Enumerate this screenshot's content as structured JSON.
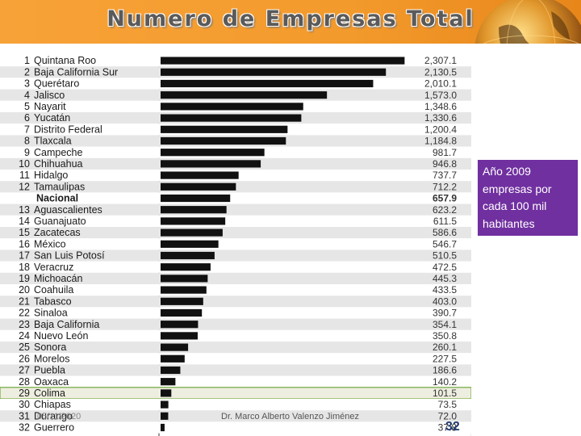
{
  "slide": {
    "title": "Numero de Empresas Total",
    "callout": "Año 2009 empresas por cada  100 mil habitantes",
    "footer_date": "05/11/2020",
    "footer_author": "Dr. Marco Alberto Valenzo Jiménez",
    "page_number": "32"
  },
  "colors": {
    "bar": "#111111",
    "highlight_bg": "#eeeee0",
    "highlight_border": "#6fa83a",
    "callout_bg": "#7030a0",
    "header_bg": "#f39a2c"
  },
  "chart_data": {
    "type": "bar",
    "orientation": "horizontal",
    "title": "",
    "xlim": [
      0,
      2350
    ],
    "highlight": "Colima",
    "rows": [
      {
        "rank": "1",
        "state": "Quintana Roo",
        "value": 2307.1,
        "label": "2,307.1"
      },
      {
        "rank": "2",
        "state": "Baja California Sur",
        "value": 2130.5,
        "label": "2,130.5"
      },
      {
        "rank": "3",
        "state": "Querétaro",
        "value": 2010.1,
        "label": "2,010.1"
      },
      {
        "rank": "4",
        "state": "Jalisco",
        "value": 1573.0,
        "label": "1,573.0"
      },
      {
        "rank": "5",
        "state": "Nayarit",
        "value": 1348.6,
        "label": "1,348.6"
      },
      {
        "rank": "6",
        "state": "Yucatán",
        "value": 1330.6,
        "label": "1,330.6"
      },
      {
        "rank": "7",
        "state": "Distrito Federal",
        "value": 1200.4,
        "label": "1,200.4"
      },
      {
        "rank": "8",
        "state": "Tlaxcala",
        "value": 1184.8,
        "label": "1,184.8"
      },
      {
        "rank": "9",
        "state": "Campeche",
        "value": 981.7,
        "label": "981.7"
      },
      {
        "rank": "10",
        "state": "Chihuahua",
        "value": 946.8,
        "label": "946.8"
      },
      {
        "rank": "11",
        "state": "Hidalgo",
        "value": 737.7,
        "label": "737.7"
      },
      {
        "rank": "12",
        "state": "Tamaulipas",
        "value": 712.2,
        "label": "712.2"
      },
      {
        "rank": "",
        "state": "Nacional",
        "value": 657.9,
        "label": "657.9"
      },
      {
        "rank": "13",
        "state": "Aguascalientes",
        "value": 623.2,
        "label": "623.2"
      },
      {
        "rank": "14",
        "state": "Guanajuato",
        "value": 611.5,
        "label": "611.5"
      },
      {
        "rank": "15",
        "state": "Zacatecas",
        "value": 586.6,
        "label": "586.6"
      },
      {
        "rank": "16",
        "state": "México",
        "value": 546.7,
        "label": "546.7"
      },
      {
        "rank": "17",
        "state": "San Luis Potosí",
        "value": 510.5,
        "label": "510.5"
      },
      {
        "rank": "18",
        "state": "Veracruz",
        "value": 472.5,
        "label": "472.5"
      },
      {
        "rank": "19",
        "state": "Michoacán",
        "value": 445.3,
        "label": "445.3"
      },
      {
        "rank": "20",
        "state": "Coahuila",
        "value": 433.5,
        "label": "433.5"
      },
      {
        "rank": "21",
        "state": "Tabasco",
        "value": 403.0,
        "label": "403.0"
      },
      {
        "rank": "22",
        "state": "Sinaloa",
        "value": 390.7,
        "label": "390.7"
      },
      {
        "rank": "23",
        "state": "Baja California",
        "value": 354.1,
        "label": "354.1"
      },
      {
        "rank": "24",
        "state": "Nuevo León",
        "value": 350.8,
        "label": "350.8"
      },
      {
        "rank": "25",
        "state": "Sonora",
        "value": 260.1,
        "label": "260.1"
      },
      {
        "rank": "26",
        "state": "Morelos",
        "value": 227.5,
        "label": "227.5"
      },
      {
        "rank": "27",
        "state": "Puebla",
        "value": 186.6,
        "label": "186.6"
      },
      {
        "rank": "28",
        "state": "Oaxaca",
        "value": 140.2,
        "label": "140.2"
      },
      {
        "rank": "29",
        "state": "Colima",
        "value": 101.5,
        "label": "101.5"
      },
      {
        "rank": "30",
        "state": "Chiapas",
        "value": 73.5,
        "label": "73.5"
      },
      {
        "rank": "31",
        "state": "Durango",
        "value": 72.0,
        "label": "72.0"
      },
      {
        "rank": "32",
        "state": "Guerrero",
        "value": 37.8,
        "label": "37.8"
      }
    ]
  }
}
